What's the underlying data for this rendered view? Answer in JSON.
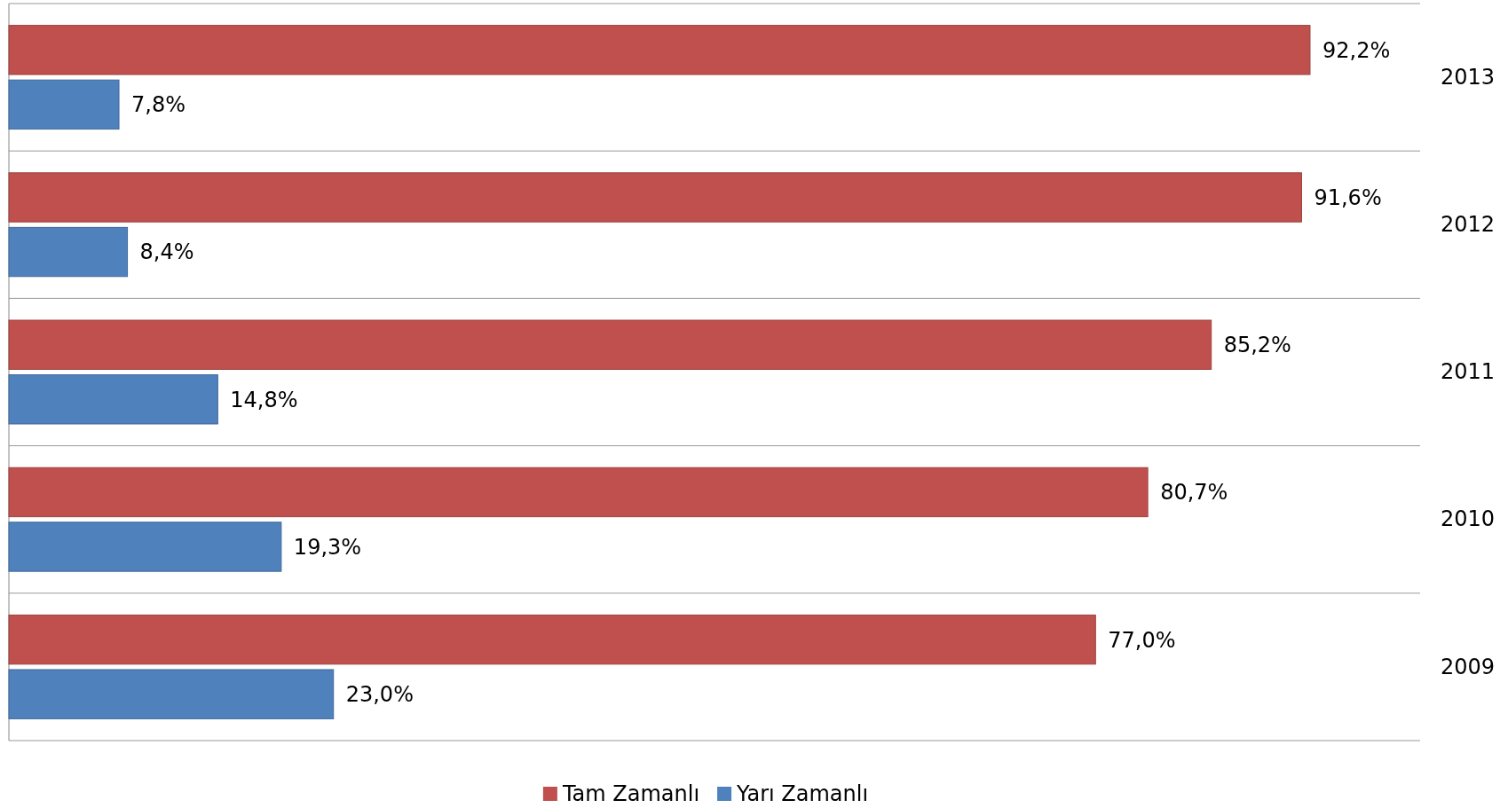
{
  "chart_data": {
    "type": "bar",
    "orientation": "horizontal",
    "categories": [
      "2013",
      "2012",
      "2011",
      "2010",
      "2009"
    ],
    "series": [
      {
        "name": "Tam Zamanlı",
        "color": "#c0504d",
        "values": [
          92.2,
          91.6,
          85.2,
          80.7,
          77.0
        ],
        "value_labels": [
          "92,2%",
          "91,6%",
          "85,2%",
          "80,7%",
          "77,0%"
        ]
      },
      {
        "name": "Yarı Zamanlı",
        "color": "#4f81bd",
        "values": [
          7.8,
          8.4,
          14.8,
          19.3,
          23.0
        ],
        "value_labels": [
          "7,8%",
          "8,4%",
          "14,8%",
          "19,3%",
          "23,0%"
        ]
      }
    ],
    "xlim": [
      0,
      100
    ],
    "tick_labels": "y",
    "grid": "y",
    "legend": "bottom"
  }
}
